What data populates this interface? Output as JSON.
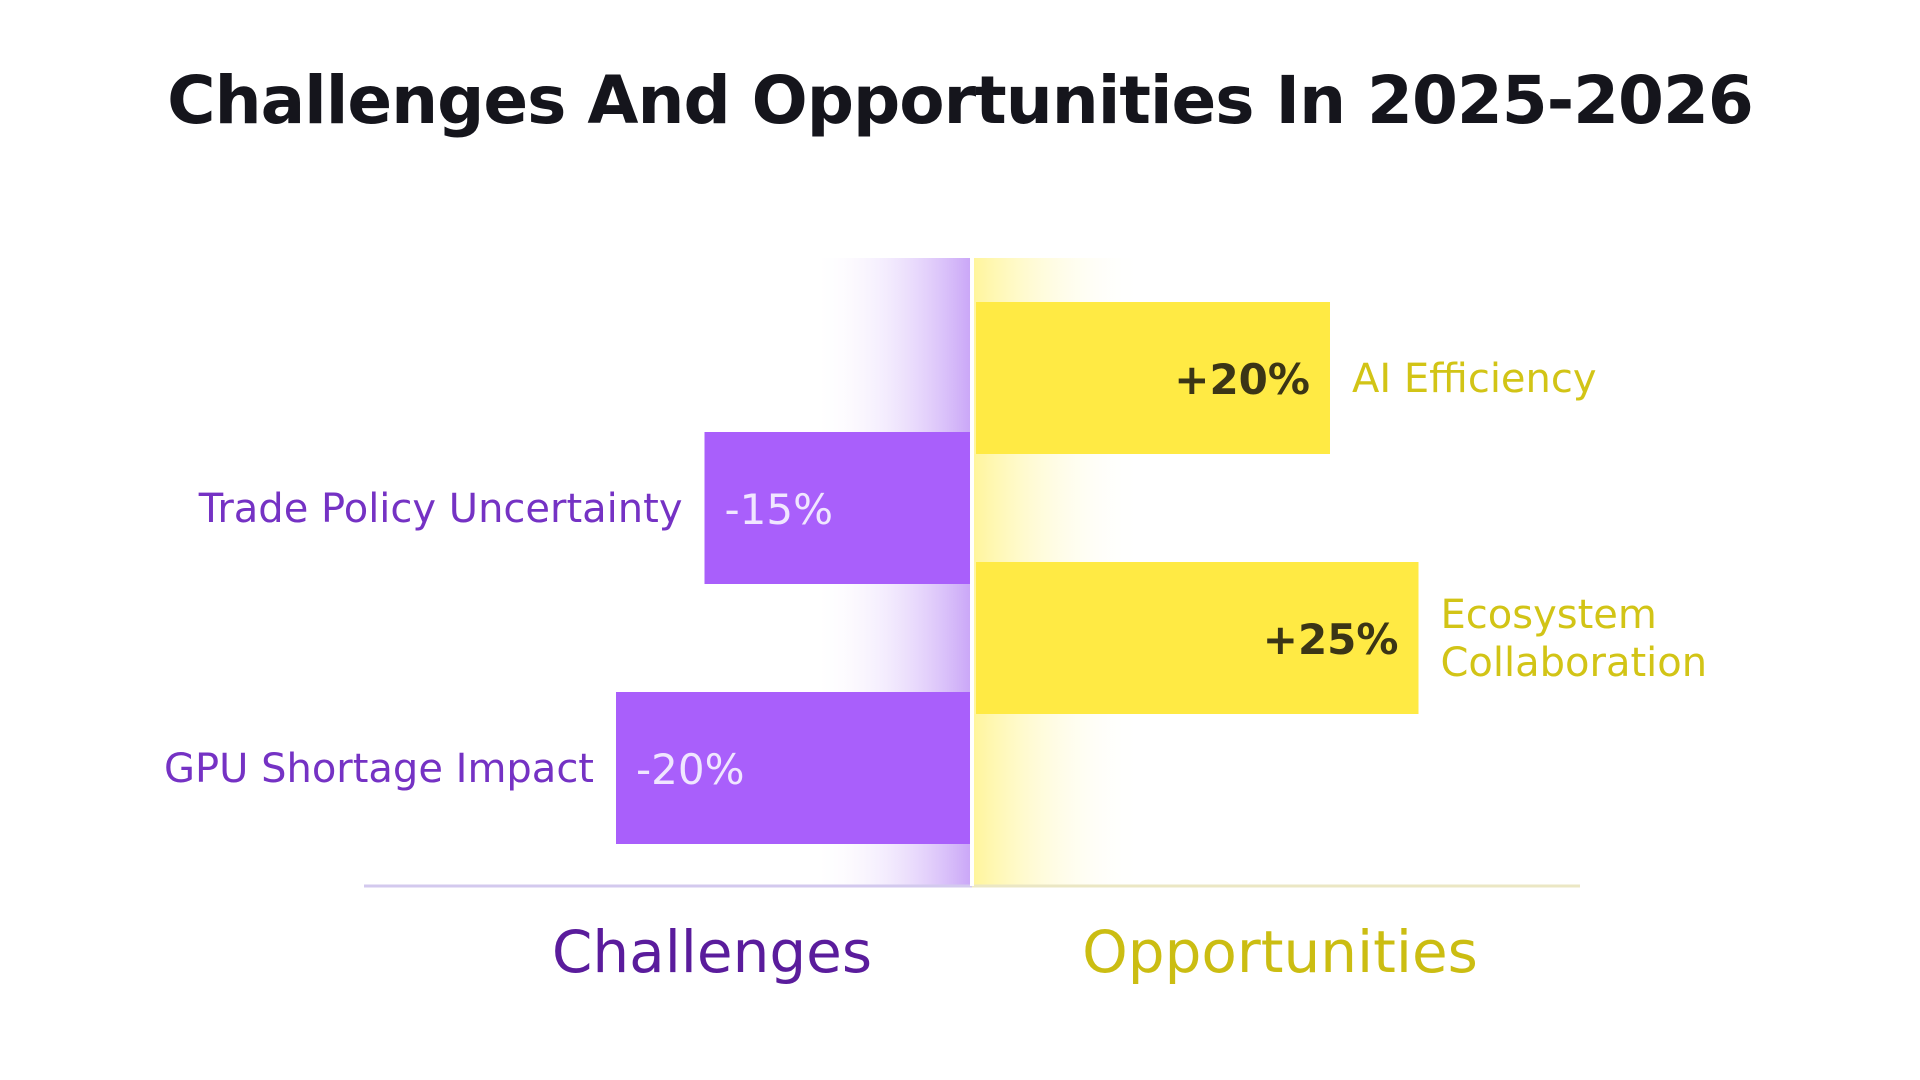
{
  "title": "Challenges And Opportunities In 2025-2026",
  "colors": {
    "challenge_bar": "#a95ffb",
    "challenge_label": "#7532c4",
    "challenge_axis_label": "#5a1c9c",
    "opportunity_bar": "#ffea44",
    "opportunity_label": "#d2c416",
    "value_text_dark": "#3b3516",
    "value_text_light": "#f0e6ff",
    "baseline": "#d8d2e4"
  },
  "chart_data": {
    "type": "bar",
    "orientation": "horizontal-diverging",
    "title": "Challenges And Opportunities In 2025-2026",
    "xlim": [
      -32,
      37
    ],
    "categories": [
      "AI Efficiency",
      "Trade Policy Uncertainty",
      "Ecosystem Collaboration",
      "GPU Shortage Impact"
    ],
    "values": [
      20,
      -15,
      25,
      -20
    ],
    "value_labels": [
      "+20%",
      "-15%",
      "+25%",
      "-20%"
    ],
    "groups": [
      "Opportunities",
      "Challenges",
      "Opportunities",
      "Challenges"
    ],
    "side_labels": {
      "negative": "Challenges",
      "positive": "Opportunities"
    }
  }
}
